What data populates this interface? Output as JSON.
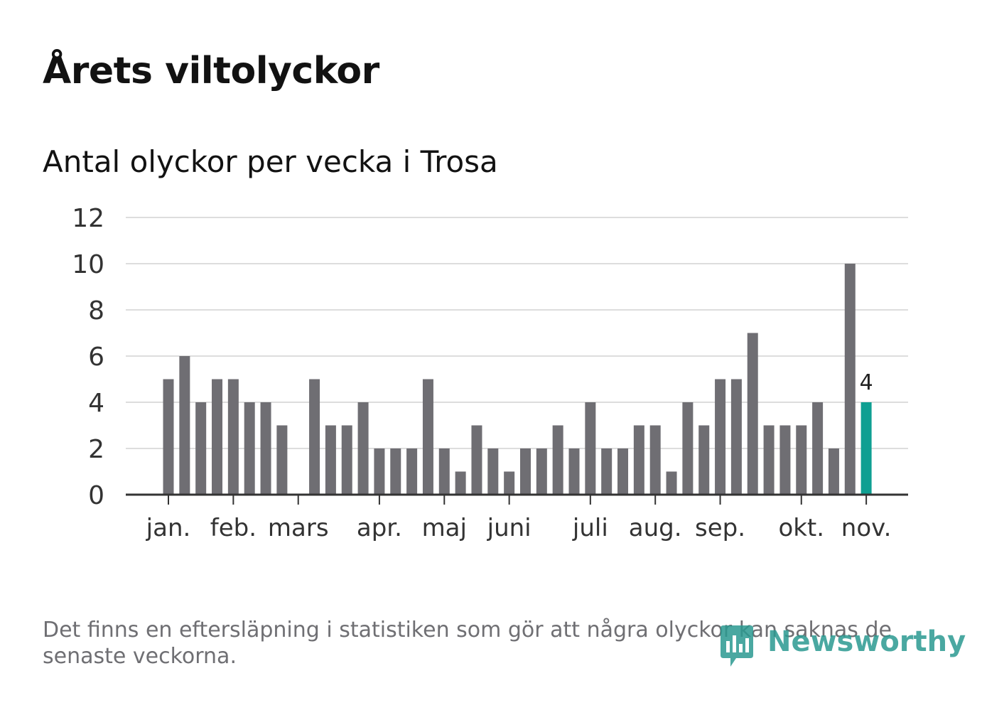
{
  "header": {
    "title": "Årets viltolyckor"
  },
  "chart_data": {
    "type": "bar",
    "title": "Antal olyckor per vecka i Trosa",
    "xlabel": "",
    "ylabel": "",
    "ylim": [
      0,
      12
    ],
    "yticks": [
      "0",
      "2",
      "4",
      "6",
      "8",
      "10",
      "12"
    ],
    "month_labels": [
      "jan.",
      "feb.",
      "mars",
      "apr.",
      "maj",
      "juni",
      "juli",
      "aug.",
      "sep.",
      "okt.",
      "nov."
    ],
    "month_week_index": [
      0,
      4,
      8,
      13,
      17,
      21,
      26,
      30,
      34,
      39,
      43
    ],
    "values": [
      5,
      6,
      4,
      5,
      5,
      4,
      4,
      3,
      0,
      5,
      3,
      3,
      4,
      2,
      2,
      2,
      5,
      2,
      1,
      3,
      2,
      1,
      2,
      2,
      3,
      2,
      4,
      2,
      2,
      3,
      3,
      1,
      4,
      3,
      5,
      5,
      7,
      3,
      3,
      3,
      4,
      2,
      10,
      4
    ],
    "highlight_index": 43,
    "highlight_label": "4",
    "colors": {
      "bar": "#6f6e73",
      "highlight": "#0f9f92",
      "grid": "#dddddd",
      "axis": "#333333"
    }
  },
  "footnote": "Det finns en eftersläpning i statistiken som gör att några olyckor kan saknas de senaste veckorna.",
  "logo": {
    "text": "Newsworthy",
    "icon": "newsworthy-chart-icon"
  }
}
